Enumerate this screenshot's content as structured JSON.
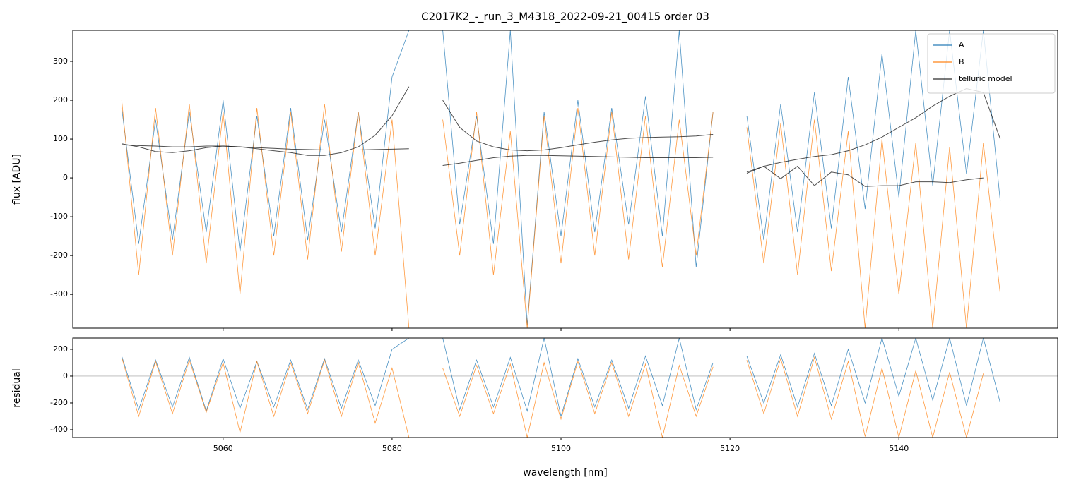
{
  "chart_data": [
    {
      "type": "line",
      "title": "C2017K2_-_run_3_M4318_2022-09-21_00415  order 03",
      "ylabel": "flux [ADU]",
      "x": [
        5048,
        5050,
        5052,
        5054,
        5056,
        5058,
        5060,
        5062,
        5064,
        5066,
        5068,
        5070,
        5072,
        5074,
        5076,
        5078,
        5080,
        5082,
        5084,
        5086,
        5088,
        5090,
        5092,
        5094,
        5096,
        5098,
        5100,
        5102,
        5104,
        5106,
        5108,
        5110,
        5112,
        5114,
        5116,
        5118,
        5120,
        5122,
        5124,
        5126,
        5128,
        5130,
        5132,
        5134,
        5136,
        5138,
        5140,
        5142,
        5144,
        5146,
        5148,
        5150,
        5152
      ],
      "series": [
        {
          "name": "A",
          "color": "#1f77b4",
          "values": [
            180,
            -170,
            150,
            -160,
            170,
            -140,
            200,
            -190,
            160,
            -150,
            180,
            -160,
            150,
            -140,
            170,
            -130,
            260,
            380,
            null,
            380,
            -120,
            160,
            -170,
            380,
            -380,
            170,
            -150,
            200,
            -140,
            180,
            -120,
            210,
            -150,
            380,
            -230,
            170,
            null,
            160,
            -160,
            190,
            -140,
            220,
            -130,
            260,
            -80,
            320,
            -50,
            380,
            -20,
            380,
            10,
            380,
            -60
          ]
        },
        {
          "name": "B",
          "color": "#ff7f0e",
          "values": [
            200,
            -250,
            180,
            -200,
            190,
            -220,
            170,
            -300,
            180,
            -200,
            170,
            -210,
            190,
            -190,
            170,
            -200,
            150,
            -387,
            null,
            150,
            -200,
            170,
            -250,
            120,
            -387,
            160,
            -220,
            180,
            -200,
            170,
            -210,
            160,
            -230,
            150,
            -200,
            170,
            null,
            130,
            -220,
            140,
            -250,
            150,
            -240,
            120,
            -387,
            100,
            -300,
            90,
            -387,
            80,
            -387,
            90,
            -300
          ]
        },
        {
          "name": "telluric model",
          "color": "#222222",
          "values": [
            88,
            80,
            68,
            65,
            70,
            78,
            82,
            80,
            75,
            70,
            65,
            58,
            58,
            65,
            80,
            110,
            160,
            235,
            null,
            200,
            130,
            95,
            80,
            72,
            70,
            72,
            78,
            85,
            92,
            98,
            102,
            104,
            105,
            106,
            108,
            112,
            null,
            15,
            30,
            40,
            48,
            55,
            60,
            70,
            85,
            105,
            130,
            155,
            185,
            210,
            230,
            220,
            100
          ]
        },
        {
          "color": "#222222",
          "values": [
            85,
            83,
            82,
            80,
            80,
            82,
            82,
            80,
            78,
            76,
            74,
            73,
            72,
            72,
            72,
            73,
            74,
            75,
            null,
            32,
            38,
            45,
            52,
            56,
            58,
            58,
            57,
            56,
            55,
            54,
            53,
            52,
            52,
            52,
            52,
            53,
            null,
            12,
            30,
            -2,
            30,
            -20,
            15,
            8,
            -22,
            -20,
            -20,
            -10,
            -10,
            -12,
            -5,
            0,
            null
          ]
        }
      ],
      "xlim": [
        5042.2,
        5158.8
      ],
      "ylim": [
        -387,
        380
      ],
      "yticks": [
        -300,
        -200,
        -100,
        0,
        100,
        200,
        300
      ],
      "legend": "upper right"
    },
    {
      "type": "line",
      "xlabel": "wavelength [nm]",
      "ylabel": "residual",
      "x": [
        5048,
        5050,
        5052,
        5054,
        5056,
        5058,
        5060,
        5062,
        5064,
        5066,
        5068,
        5070,
        5072,
        5074,
        5076,
        5078,
        5080,
        5082,
        5084,
        5086,
        5088,
        5090,
        5092,
        5094,
        5096,
        5098,
        5100,
        5102,
        5104,
        5106,
        5108,
        5110,
        5112,
        5114,
        5116,
        5118,
        5120,
        5122,
        5124,
        5126,
        5128,
        5130,
        5132,
        5134,
        5136,
        5138,
        5140,
        5142,
        5144,
        5146,
        5148,
        5150,
        5152
      ],
      "series": [
        {
          "color": "#1f77b4",
          "values": [
            150,
            -250,
            120,
            -230,
            140,
            -260,
            130,
            -240,
            110,
            -230,
            120,
            -250,
            130,
            -240,
            120,
            -220,
            200,
            284,
            null,
            284,
            -250,
            120,
            -230,
            140,
            -260,
            284,
            -300,
            130,
            -230,
            120,
            -240,
            150,
            -220,
            284,
            -250,
            100,
            null,
            150,
            -200,
            160,
            -230,
            170,
            -220,
            200,
            -200,
            284,
            -150,
            284,
            -180,
            284,
            -220,
            284,
            -200
          ]
        },
        {
          "color": "#ff7f0e",
          "values": [
            140,
            -300,
            110,
            -280,
            120,
            -270,
            100,
            -420,
            110,
            -300,
            100,
            -280,
            120,
            -300,
            100,
            -350,
            60,
            -458,
            null,
            60,
            -300,
            80,
            -280,
            90,
            -458,
            100,
            -320,
            110,
            -280,
            100,
            -300,
            90,
            -458,
            80,
            -300,
            70,
            null,
            120,
            -280,
            130,
            -300,
            140,
            -320,
            110,
            -450,
            60,
            -458,
            40,
            -458,
            30,
            -458,
            20,
            null
          ]
        }
      ],
      "xlim": [
        5042.2,
        5158.8
      ],
      "ylim": [
        -458,
        284
      ],
      "yticks": [
        -400,
        -200,
        0,
        200
      ],
      "xticks": [
        5060,
        5080,
        5100,
        5120,
        5140
      ]
    }
  ]
}
